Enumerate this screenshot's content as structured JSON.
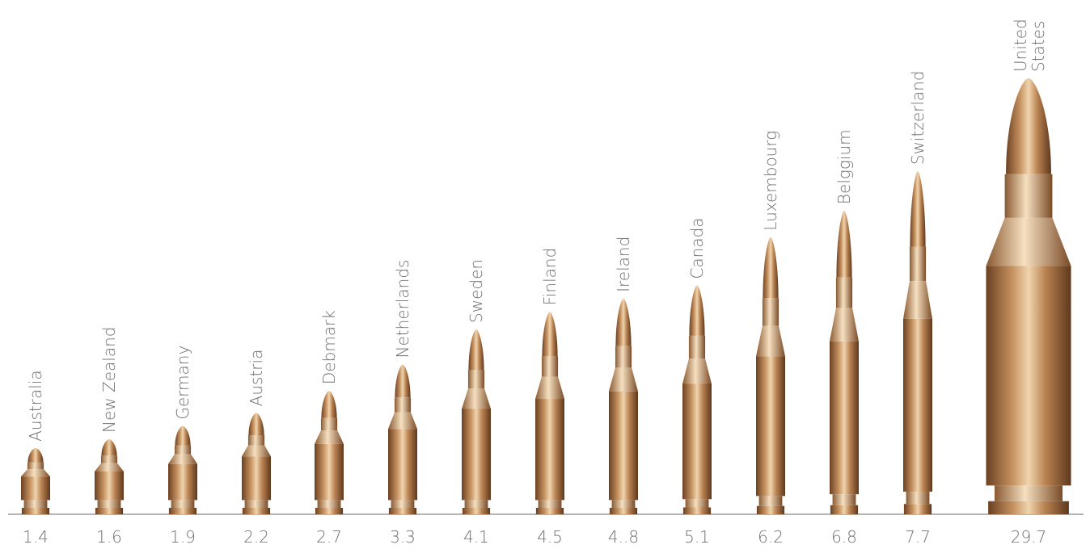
{
  "chart_data": {
    "type": "bullet",
    "categories": [
      "Australia",
      "New Zealand",
      "Germany",
      "Austria",
      "Debmark",
      "Netherlands",
      "Sweden",
      "Finland",
      "Ireland",
      "Canada",
      "Luxembourg",
      "Belggium",
      "Switzerland",
      "United States"
    ],
    "values": [
      1.4,
      1.6,
      1.9,
      2.2,
      2.7,
      3.3,
      4.1,
      4.5,
      4.8,
      5.1,
      6.2,
      6.8,
      7.7,
      29.7
    ],
    "value_labels": [
      "1.4",
      "1.6",
      "1.9",
      "2.2",
      "2.7",
      "3.3",
      "4.1",
      "4.5",
      "4..8",
      "5.1",
      "6.2",
      "6.8",
      "7.7",
      "29.7"
    ],
    "color": "#b07b4f"
  }
}
